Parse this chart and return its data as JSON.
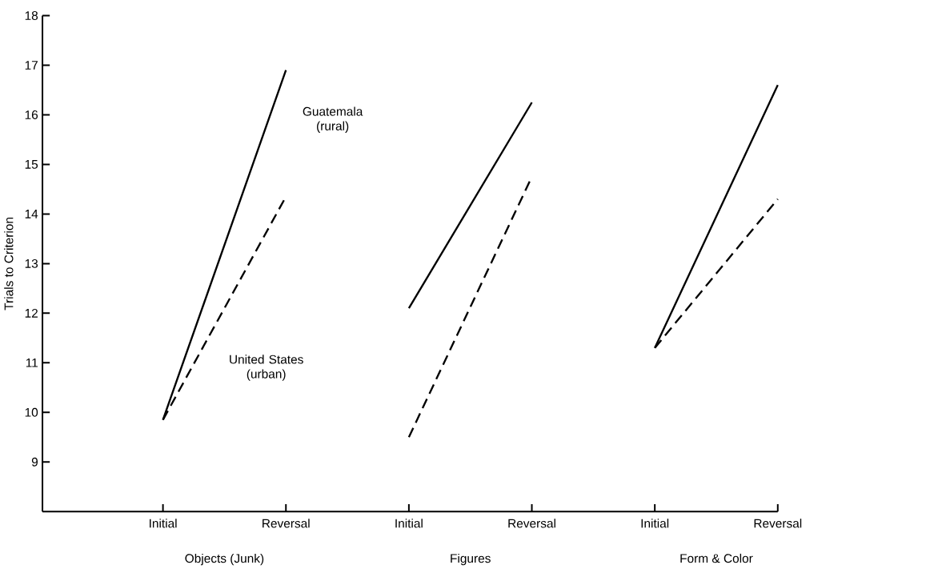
{
  "chart_data": {
    "type": "line",
    "ylabel": "Trials to Criterion",
    "categories": [
      "Initial",
      "Reversal",
      "Initial",
      "Reversal",
      "Initial",
      "Reversal"
    ],
    "series": [
      {
        "name": "Guatemala (rural)",
        "color": "#000000",
        "line_style": "solid",
        "values": [
          9.85,
          16.9,
          12.1,
          16.25,
          11.3,
          16.6
        ]
      },
      {
        "name": "United States (urban)",
        "color": "#000000",
        "line_style": "dashed",
        "values": [
          9.85,
          14.35,
          9.5,
          14.75,
          11.3,
          14.3
        ]
      }
    ],
    "annotations": [
      "Objects (Junk)",
      "Figures",
      "Form & Color"
    ],
    "ylim": [
      8,
      18
    ],
    "yticks": [
      9,
      10,
      11,
      12,
      13,
      14,
      15,
      16,
      17,
      18
    ],
    "grid": false,
    "legend": false,
    "marker": "none"
  }
}
